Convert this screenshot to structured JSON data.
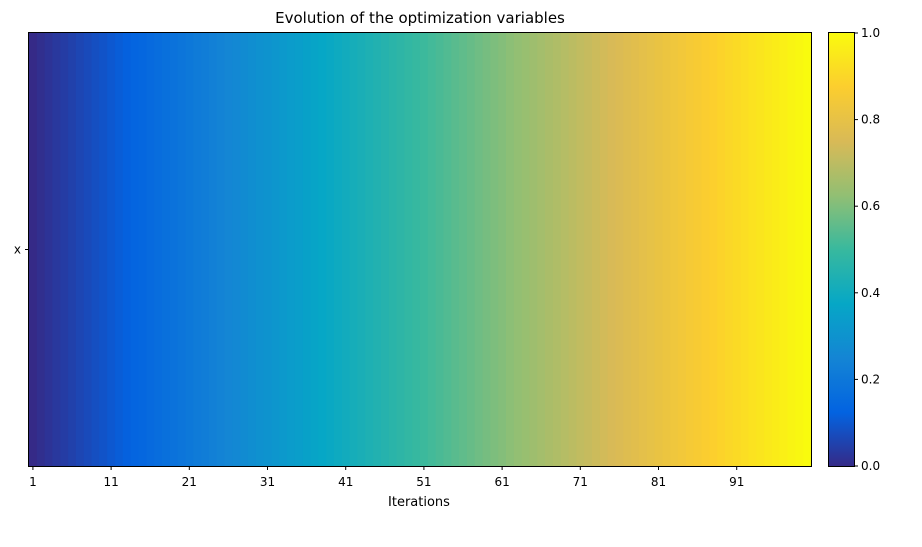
{
  "chart_data": {
    "type": "heatmap",
    "title": "Evolution of the optimization variables",
    "xlabel": "Iterations",
    "ylabel": "",
    "row_labels": [
      "x"
    ],
    "x_range": [
      1,
      100
    ],
    "xticks": [
      "1",
      "11",
      "21",
      "31",
      "41",
      "51",
      "61",
      "71",
      "81",
      "91"
    ],
    "values_description_hidden": "",
    "value_formula": "normalized value rises linearly from 0 at iteration 1 to 1 at iteration 100",
    "values": [
      [
        0.0,
        0.0101,
        0.0202,
        0.0303,
        0.0404,
        0.0505,
        0.0606,
        0.0707,
        0.0808,
        0.0909,
        0.101,
        0.1111,
        0.1212,
        0.1313,
        0.1414,
        0.1515,
        0.1616,
        0.1717,
        0.1818,
        0.1919,
        0.202,
        0.2121,
        0.2222,
        0.2323,
        0.2424,
        0.2525,
        0.2626,
        0.2727,
        0.2828,
        0.2929,
        0.303,
        0.3131,
        0.3232,
        0.3333,
        0.3434,
        0.3535,
        0.3636,
        0.3737,
        0.3838,
        0.3939,
        0.404,
        0.4141,
        0.4242,
        0.4343,
        0.4444,
        0.4545,
        0.4646,
        0.4747,
        0.4848,
        0.4949,
        0.5051,
        0.5152,
        0.5253,
        0.5354,
        0.5455,
        0.5556,
        0.5657,
        0.5758,
        0.5859,
        0.596,
        0.6061,
        0.6162,
        0.6263,
        0.6364,
        0.6465,
        0.6566,
        0.6667,
        0.6768,
        0.6869,
        0.697,
        0.7071,
        0.7172,
        0.7273,
        0.7374,
        0.7475,
        0.7576,
        0.7677,
        0.7778,
        0.7879,
        0.798,
        0.8081,
        0.8182,
        0.8283,
        0.8384,
        0.8485,
        0.8586,
        0.8687,
        0.8788,
        0.8889,
        0.899,
        0.9091,
        0.9192,
        0.9293,
        0.9394,
        0.9495,
        0.9596,
        0.9697,
        0.9798,
        0.9899,
        1.0
      ]
    ],
    "colorbar": {
      "range": [
        0,
        1
      ],
      "ticks": [
        "0.0",
        "0.2",
        "0.4",
        "0.6",
        "0.8",
        "1.0"
      ],
      "colormap": "parula",
      "colormap_stops": [
        "#352a87",
        "#0363e1",
        "#1485d4",
        "#06a7c6",
        "#38b99e",
        "#92bf73",
        "#d9ba56",
        "#fcce2e",
        "#f9fb0e"
      ]
    }
  }
}
